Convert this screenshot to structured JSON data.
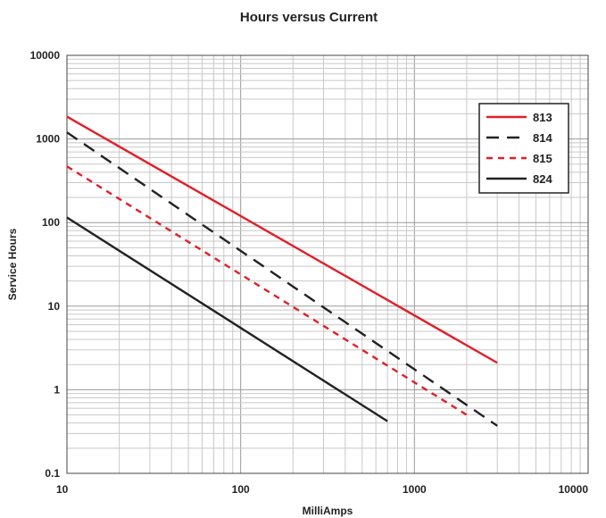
{
  "chart_data": {
    "type": "line",
    "title": "Hours versus Current",
    "xlabel": "MilliAmps",
    "ylabel": "Service Hours",
    "xscale": "log",
    "yscale": "log",
    "xlim": [
      10,
      10000
    ],
    "ylim": [
      0.1,
      10000
    ],
    "x_ticks": [
      "10",
      "100",
      "1000",
      "10000"
    ],
    "y_ticks": [
      "0.1",
      "1",
      "10",
      "100",
      "1000",
      "10000"
    ],
    "grid": true,
    "legend_position": "top-right",
    "series": [
      {
        "name": "813",
        "color": "#e0202a",
        "dash": "solid",
        "x": [
          10,
          3000
        ],
        "y": [
          1850,
          2.1
        ]
      },
      {
        "name": "814",
        "color": "#222222",
        "dash": "long-dash",
        "x": [
          10,
          3000
        ],
        "y": [
          1200,
          0.37
        ]
      },
      {
        "name": "815",
        "color": "#e0202a",
        "dash": "short-dash",
        "x": [
          10,
          2100
        ],
        "y": [
          470,
          0.47
        ]
      },
      {
        "name": "824",
        "color": "#222222",
        "dash": "solid",
        "x": [
          10,
          700
        ],
        "y": [
          115,
          0.42
        ]
      }
    ]
  }
}
